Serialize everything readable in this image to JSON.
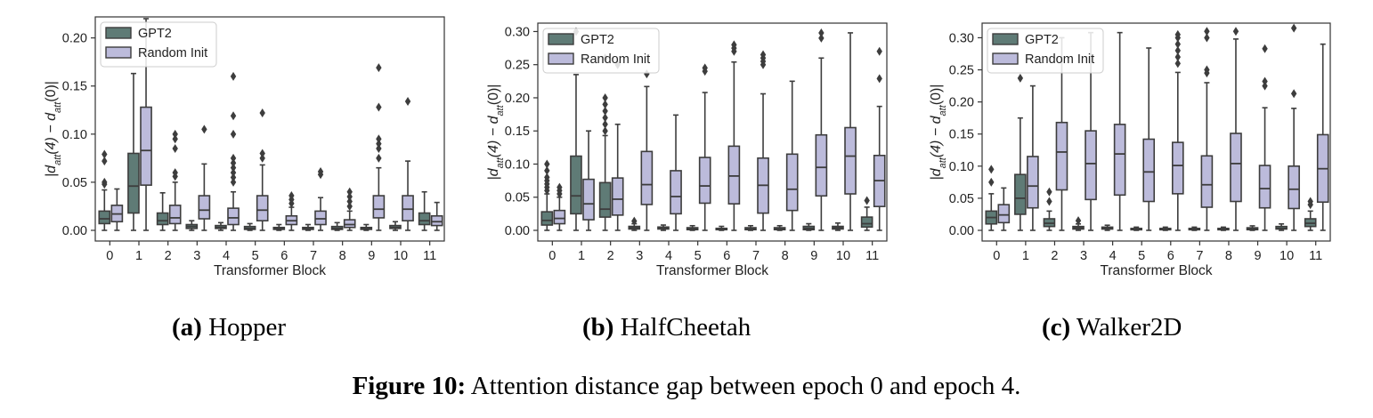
{
  "colors": {
    "gpt2": "#5f7b76",
    "random": "#bcbbdb",
    "line": "#3d3d3d"
  },
  "charts": [
    {
      "type": "box",
      "title": "",
      "xlabel": "Transformer Block",
      "ylabel_main": "|d",
      "ylabel_sub1": "att",
      "ylabel_mid": "(4) − d",
      "ylabel_sub2": "att",
      "ylabel_end": "(0)|",
      "ylim": [
        0,
        0.22
      ],
      "yticks": [
        0.0,
        0.05,
        0.1,
        0.15,
        0.2
      ],
      "ytick_labels": [
        "0.00",
        "0.05",
        "0.10",
        "0.15",
        "0.20"
      ],
      "categories": [
        "0",
        "1",
        "2",
        "3",
        "4",
        "5",
        "6",
        "7",
        "8",
        "9",
        "10",
        "11"
      ],
      "legend_loc": "top-left",
      "series": [
        {
          "name": "GPT2",
          "boxes": [
            {
              "wl": 0,
              "q1": 0.007,
              "med": 0.012,
              "q3": 0.02,
              "wh": 0.042,
              "fl": [
                0.048,
                0.05,
                0.072,
                0.079
              ]
            },
            {
              "wl": 0,
              "q1": 0.018,
              "med": 0.046,
              "q3": 0.08,
              "wh": 0.163,
              "fl": []
            },
            {
              "wl": 0,
              "q1": 0.006,
              "med": 0.01,
              "q3": 0.018,
              "wh": 0.039,
              "fl": []
            },
            {
              "wl": 0,
              "q1": 0.002,
              "med": 0.004,
              "q3": 0.006,
              "wh": 0.01,
              "fl": []
            },
            {
              "wl": 0,
              "q1": 0.002,
              "med": 0.003,
              "q3": 0.005,
              "wh": 0.008,
              "fl": []
            },
            {
              "wl": 0,
              "q1": 0.001,
              "med": 0.002,
              "q3": 0.004,
              "wh": 0.007,
              "fl": []
            },
            {
              "wl": 0,
              "q1": 0.001,
              "med": 0.002,
              "q3": 0.003,
              "wh": 0.006,
              "fl": []
            },
            {
              "wl": 0,
              "q1": 0.001,
              "med": 0.002,
              "q3": 0.003,
              "wh": 0.006,
              "fl": []
            },
            {
              "wl": 0,
              "q1": 0.001,
              "med": 0.002,
              "q3": 0.004,
              "wh": 0.008,
              "fl": []
            },
            {
              "wl": 0,
              "q1": 0.001,
              "med": 0.002,
              "q3": 0.003,
              "wh": 0.006,
              "fl": []
            },
            {
              "wl": 0,
              "q1": 0.002,
              "med": 0.003,
              "q3": 0.005,
              "wh": 0.009,
              "fl": []
            },
            {
              "wl": 0,
              "q1": 0.006,
              "med": 0.01,
              "q3": 0.018,
              "wh": 0.04,
              "fl": []
            }
          ]
        },
        {
          "name": "Random Init",
          "boxes": [
            {
              "wl": 0,
              "q1": 0.009,
              "med": 0.017,
              "q3": 0.026,
              "wh": 0.043,
              "fl": []
            },
            {
              "wl": 0,
              "q1": 0.047,
              "med": 0.083,
              "q3": 0.128,
              "wh": 0.22,
              "fl": []
            },
            {
              "wl": 0,
              "q1": 0.007,
              "med": 0.013,
              "q3": 0.026,
              "wh": 0.05,
              "fl": [
                0.056,
                0.06,
                0.085,
                0.095,
                0.1
              ]
            },
            {
              "wl": 0,
              "q1": 0.012,
              "med": 0.021,
              "q3": 0.036,
              "wh": 0.069,
              "fl": [
                0.105
              ]
            },
            {
              "wl": 0,
              "q1": 0.006,
              "med": 0.013,
              "q3": 0.023,
              "wh": 0.04,
              "fl": [
                0.05,
                0.055,
                0.06,
                0.065,
                0.07,
                0.075,
                0.1,
                0.119,
                0.16
              ]
            },
            {
              "wl": 0,
              "q1": 0.01,
              "med": 0.021,
              "q3": 0.036,
              "wh": 0.068,
              "fl": [
                0.075,
                0.08,
                0.122
              ]
            },
            {
              "wl": 0,
              "q1": 0.006,
              "med": 0.01,
              "q3": 0.015,
              "wh": 0.024,
              "fl": [
                0.028,
                0.032,
                0.036
              ]
            },
            {
              "wl": 0,
              "q1": 0.006,
              "med": 0.012,
              "q3": 0.02,
              "wh": 0.034,
              "fl": [
                0.058,
                0.061
              ]
            },
            {
              "wl": 0,
              "q1": 0.003,
              "med": 0.006,
              "q3": 0.011,
              "wh": 0.02,
              "fl": [
                0.025,
                0.03,
                0.035,
                0.04
              ]
            },
            {
              "wl": 0,
              "q1": 0.013,
              "med": 0.022,
              "q3": 0.036,
              "wh": 0.065,
              "fl": [
                0.075,
                0.085,
                0.09,
                0.095,
                0.128,
                0.169
              ]
            },
            {
              "wl": 0,
              "q1": 0.01,
              "med": 0.022,
              "q3": 0.036,
              "wh": 0.072,
              "fl": [
                0.134
              ]
            },
            {
              "wl": 0,
              "q1": 0.005,
              "med": 0.009,
              "q3": 0.015,
              "wh": 0.029,
              "fl": []
            }
          ]
        }
      ]
    },
    {
      "type": "box",
      "title": "",
      "xlabel": "Transformer Block",
      "ylabel_main": "|d",
      "ylabel_sub1": "att",
      "ylabel_mid": "(4) − d",
      "ylabel_sub2": "att",
      "ylabel_end": "(0)|",
      "ylim": [
        0,
        0.31
      ],
      "yticks": [
        0.0,
        0.05,
        0.1,
        0.15,
        0.2,
        0.25,
        0.3
      ],
      "ytick_labels": [
        "0.00",
        "0.05",
        "0.10",
        "0.15",
        "0.20",
        "0.25",
        "0.30"
      ],
      "categories": [
        "0",
        "1",
        "2",
        "3",
        "4",
        "5",
        "6",
        "7",
        "8",
        "9",
        "10",
        "11"
      ],
      "legend_loc": "top-left",
      "series": [
        {
          "name": "GPT2",
          "boxes": [
            {
              "wl": 0,
              "q1": 0.008,
              "med": 0.015,
              "q3": 0.028,
              "wh": 0.055,
              "fl": [
                0.06,
                0.065,
                0.07,
                0.075,
                0.08,
                0.09,
                0.1
              ]
            },
            {
              "wl": 0,
              "q1": 0.025,
              "med": 0.052,
              "q3": 0.112,
              "wh": 0.235,
              "fl": [
                0.3
              ]
            },
            {
              "wl": 0,
              "q1": 0.02,
              "med": 0.032,
              "q3": 0.072,
              "wh": 0.143,
              "fl": [
                0.15,
                0.16,
                0.17,
                0.18,
                0.19,
                0.2,
                0.26
              ]
            },
            {
              "wl": 0,
              "q1": 0.002,
              "med": 0.004,
              "q3": 0.006,
              "wh": 0.01,
              "fl": [
                0.014
              ]
            },
            {
              "wl": 0,
              "q1": 0.002,
              "med": 0.003,
              "q3": 0.005,
              "wh": 0.008,
              "fl": []
            },
            {
              "wl": 0,
              "q1": 0.001,
              "med": 0.002,
              "q3": 0.004,
              "wh": 0.007,
              "fl": []
            },
            {
              "wl": 0,
              "q1": 0.001,
              "med": 0.002,
              "q3": 0.003,
              "wh": 0.006,
              "fl": []
            },
            {
              "wl": 0,
              "q1": 0.001,
              "med": 0.002,
              "q3": 0.004,
              "wh": 0.007,
              "fl": []
            },
            {
              "wl": 0,
              "q1": 0.001,
              "med": 0.002,
              "q3": 0.004,
              "wh": 0.007,
              "fl": []
            },
            {
              "wl": 0,
              "q1": 0.001,
              "med": 0.003,
              "q3": 0.006,
              "wh": 0.01,
              "fl": []
            },
            {
              "wl": 0,
              "q1": 0.002,
              "med": 0.004,
              "q3": 0.006,
              "wh": 0.011,
              "fl": []
            },
            {
              "wl": 0,
              "q1": 0.005,
              "med": 0.01,
              "q3": 0.02,
              "wh": 0.035,
              "fl": [
                0.045
              ]
            }
          ]
        },
        {
          "name": "Random Init",
          "boxes": [
            {
              "wl": 0,
              "q1": 0.01,
              "med": 0.018,
              "q3": 0.03,
              "wh": 0.05,
              "fl": [
                0.055,
                0.06,
                0.065
              ]
            },
            {
              "wl": 0,
              "q1": 0.016,
              "med": 0.04,
              "q3": 0.077,
              "wh": 0.15,
              "fl": []
            },
            {
              "wl": 0,
              "q1": 0.023,
              "med": 0.047,
              "q3": 0.079,
              "wh": 0.16,
              "fl": [
                0.25
              ]
            },
            {
              "wl": 0,
              "q1": 0.039,
              "med": 0.069,
              "q3": 0.119,
              "wh": 0.217,
              "fl": [
                0.236
              ]
            },
            {
              "wl": 0,
              "q1": 0.025,
              "med": 0.051,
              "q3": 0.09,
              "wh": 0.174,
              "fl": []
            },
            {
              "wl": 0,
              "q1": 0.041,
              "med": 0.067,
              "q3": 0.11,
              "wh": 0.208,
              "fl": [
                0.24,
                0.245
              ]
            },
            {
              "wl": 0,
              "q1": 0.04,
              "med": 0.082,
              "q3": 0.127,
              "wh": 0.254,
              "fl": [
                0.27,
                0.275,
                0.28
              ]
            },
            {
              "wl": 0,
              "q1": 0.026,
              "med": 0.068,
              "q3": 0.109,
              "wh": 0.206,
              "fl": [
                0.25,
                0.255,
                0.26,
                0.265
              ]
            },
            {
              "wl": 0,
              "q1": 0.03,
              "med": 0.062,
              "q3": 0.115,
              "wh": 0.225,
              "fl": []
            },
            {
              "wl": 0,
              "q1": 0.052,
              "med": 0.095,
              "q3": 0.144,
              "wh": 0.26,
              "fl": [
                0.29,
                0.298
              ]
            },
            {
              "wl": 0,
              "q1": 0.055,
              "med": 0.112,
              "q3": 0.155,
              "wh": 0.298,
              "fl": []
            },
            {
              "wl": 0,
              "q1": 0.036,
              "med": 0.075,
              "q3": 0.113,
              "wh": 0.187,
              "fl": [
                0.229,
                0.27
              ]
            }
          ]
        }
      ]
    },
    {
      "type": "box",
      "title": "",
      "xlabel": "Transformer Block",
      "ylabel_main": "|d",
      "ylabel_sub1": "att",
      "ylabel_mid": "(4) − d",
      "ylabel_sub2": "att",
      "ylabel_end": "(0)|",
      "ylim": [
        0,
        0.32
      ],
      "yticks": [
        0.0,
        0.05,
        0.1,
        0.15,
        0.2,
        0.25,
        0.3
      ],
      "ytick_labels": [
        "0.00",
        "0.05",
        "0.10",
        "0.15",
        "0.20",
        "0.25",
        "0.30"
      ],
      "categories": [
        "0",
        "1",
        "2",
        "3",
        "4",
        "5",
        "6",
        "7",
        "8",
        "9",
        "10",
        "11"
      ],
      "legend_loc": "top-left",
      "series": [
        {
          "name": "GPT2",
          "boxes": [
            {
              "wl": 0,
              "q1": 0.01,
              "med": 0.02,
              "q3": 0.03,
              "wh": 0.057,
              "fl": [
                0.075,
                0.095
              ]
            },
            {
              "wl": 0,
              "q1": 0.025,
              "med": 0.05,
              "q3": 0.087,
              "wh": 0.175,
              "fl": [
                0.237
              ]
            },
            {
              "wl": 0,
              "q1": 0.006,
              "med": 0.011,
              "q3": 0.018,
              "wh": 0.03,
              "fl": [
                0.045,
                0.06
              ]
            },
            {
              "wl": 0,
              "q1": 0.002,
              "med": 0.004,
              "q3": 0.006,
              "wh": 0.01,
              "fl": [
                0.015
              ]
            },
            {
              "wl": 0,
              "q1": 0.002,
              "med": 0.003,
              "q3": 0.005,
              "wh": 0.008,
              "fl": []
            },
            {
              "wl": 0,
              "q1": 0.001,
              "med": 0.002,
              "q3": 0.003,
              "wh": 0.005,
              "fl": []
            },
            {
              "wl": 0,
              "q1": 0.001,
              "med": 0.002,
              "q3": 0.003,
              "wh": 0.005,
              "fl": []
            },
            {
              "wl": 0,
              "q1": 0.001,
              "med": 0.002,
              "q3": 0.003,
              "wh": 0.005,
              "fl": []
            },
            {
              "wl": 0,
              "q1": 0.001,
              "med": 0.002,
              "q3": 0.003,
              "wh": 0.005,
              "fl": []
            },
            {
              "wl": 0,
              "q1": 0.001,
              "med": 0.002,
              "q3": 0.004,
              "wh": 0.007,
              "fl": []
            },
            {
              "wl": 0,
              "q1": 0.002,
              "med": 0.003,
              "q3": 0.006,
              "wh": 0.01,
              "fl": []
            },
            {
              "wl": 0,
              "q1": 0.006,
              "med": 0.011,
              "q3": 0.018,
              "wh": 0.03,
              "fl": [
                0.04,
                0.045
              ]
            }
          ]
        },
        {
          "name": "Random Init",
          "boxes": [
            {
              "wl": 0,
              "q1": 0.012,
              "med": 0.024,
              "q3": 0.04,
              "wh": 0.066,
              "fl": []
            },
            {
              "wl": 0,
              "q1": 0.035,
              "med": 0.069,
              "q3": 0.115,
              "wh": 0.225,
              "fl": []
            },
            {
              "wl": 0,
              "q1": 0.063,
              "med": 0.122,
              "q3": 0.168,
              "wh": 0.3,
              "fl": []
            },
            {
              "wl": 0,
              "q1": 0.048,
              "med": 0.104,
              "q3": 0.155,
              "wh": 0.308,
              "fl": []
            },
            {
              "wl": 0,
              "q1": 0.055,
              "med": 0.119,
              "q3": 0.165,
              "wh": 0.308,
              "fl": []
            },
            {
              "wl": 0,
              "q1": 0.045,
              "med": 0.091,
              "q3": 0.142,
              "wh": 0.284,
              "fl": []
            },
            {
              "wl": 0,
              "q1": 0.057,
              "med": 0.101,
              "q3": 0.137,
              "wh": 0.246,
              "fl": [
                0.26,
                0.27,
                0.28,
                0.29,
                0.3,
                0.305
              ]
            },
            {
              "wl": 0,
              "q1": 0.036,
              "med": 0.071,
              "q3": 0.116,
              "wh": 0.23,
              "fl": [
                0.245,
                0.25,
                0.3,
                0.31
              ]
            },
            {
              "wl": 0,
              "q1": 0.045,
              "med": 0.104,
              "q3": 0.151,
              "wh": 0.298,
              "fl": [
                0.31
              ]
            },
            {
              "wl": 0,
              "q1": 0.035,
              "med": 0.065,
              "q3": 0.101,
              "wh": 0.191,
              "fl": [
                0.225,
                0.232,
                0.283
              ]
            },
            {
              "wl": 0,
              "q1": 0.034,
              "med": 0.064,
              "q3": 0.1,
              "wh": 0.19,
              "fl": [
                0.213,
                0.315
              ]
            },
            {
              "wl": 0,
              "q1": 0.044,
              "med": 0.096,
              "q3": 0.149,
              "wh": 0.29,
              "fl": []
            }
          ]
        }
      ]
    }
  ],
  "subcaptions": [
    {
      "label": "(a)",
      "text": "Hopper"
    },
    {
      "label": "(b)",
      "text": "HalfCheetah"
    },
    {
      "label": "(c)",
      "text": "Walker2D"
    }
  ],
  "figure_caption": {
    "label": "Figure 10:",
    "text": "Attention distance gap between epoch 0 and epoch 4."
  }
}
